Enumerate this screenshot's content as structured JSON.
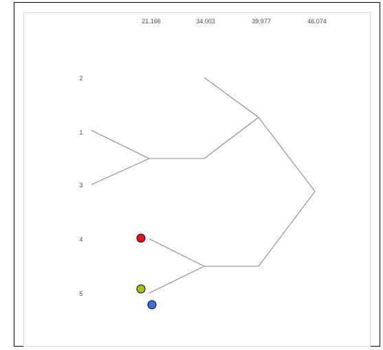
{
  "dendrogram": {
    "height_ticks": [
      "21.166",
      "34.003",
      "39.977",
      "46.074"
    ],
    "leaves": [
      "2",
      "1",
      "3",
      "4",
      "5"
    ],
    "merges": [
      {
        "left": "1",
        "right": "3",
        "height": 21.166
      },
      {
        "left": "4",
        "right": "5",
        "height": 34.003
      },
      {
        "left": "2",
        "right": "1+3",
        "height": 39.977
      },
      {
        "left": "2+1+3",
        "right": "4+5",
        "height": 46.074
      }
    ]
  },
  "markers": [
    {
      "name": "red-marker",
      "color": "#e8141b"
    },
    {
      "name": "green-marker",
      "color": "#9ec617"
    },
    {
      "name": "blue-marker",
      "color": "#3b6fe0"
    }
  ],
  "colors": {
    "branch": "#8a8a8a",
    "frame": "#000000",
    "inner_border": "#d6d6d6"
  }
}
